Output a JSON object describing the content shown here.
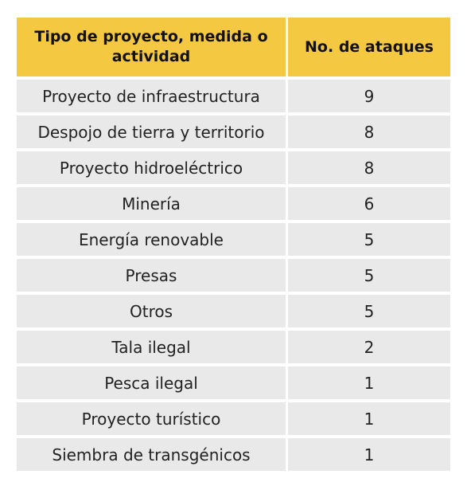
{
  "chart_data": {
    "type": "table",
    "columns": [
      "Tipo de proyecto, medida o actividad",
      "No. de ataques"
    ],
    "rows": [
      {
        "tipo": "Proyecto de infraestructura",
        "ataques": 9
      },
      {
        "tipo": "Despojo de tierra y territorio",
        "ataques": 8
      },
      {
        "tipo": "Proyecto hidroeléctrico",
        "ataques": 8
      },
      {
        "tipo": "Minería",
        "ataques": 6
      },
      {
        "tipo": "Energía renovable",
        "ataques": 5
      },
      {
        "tipo": "Presas",
        "ataques": 5
      },
      {
        "tipo": "Otros",
        "ataques": 5
      },
      {
        "tipo": "Tala ilegal",
        "ataques": 2
      },
      {
        "tipo": "Pesca ilegal",
        "ataques": 1
      },
      {
        "tipo": "Proyecto turístico",
        "ataques": 1
      },
      {
        "tipo": "Siembra de transgénicos",
        "ataques": 1
      }
    ],
    "colors": {
      "header": "#f5c842",
      "row": "#e9e9e9"
    }
  }
}
